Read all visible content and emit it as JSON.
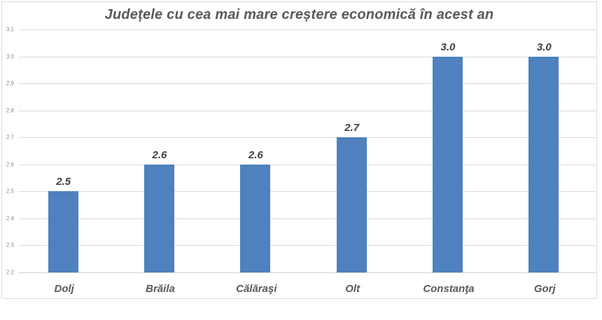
{
  "chart": {
    "title": "Județele cu cea mai mare creștere economică în acest an",
    "colors": {
      "bar": "#4e81bd",
      "gridline": "#d9d9d9",
      "panel_border": "#d9dce1",
      "title_text": "#595959",
      "value_label_text": "#404040",
      "category_text": "#595959",
      "tick_text": "#8c8c8c",
      "background": "#ffffff"
    }
  },
  "chart_data": {
    "type": "bar",
    "title": "Județele cu cea mai mare creștere economică în acest an",
    "categories": [
      "Dolj",
      "Brăila",
      "Călăraşi",
      "Olt",
      "Constanţa",
      "Gorj"
    ],
    "values": [
      2.5,
      2.6,
      2.6,
      2.7,
      3.0,
      3.0
    ],
    "value_labels": [
      "2.5",
      "2.6",
      "2.6",
      "2.7",
      "3.0",
      "3.0"
    ],
    "xlabel": "",
    "ylabel": "",
    "ylim": [
      2.2,
      3.1
    ],
    "ytick_step": 0.1,
    "yticks": [
      "3.1",
      "3.0",
      "2.9",
      "2.8",
      "2.7",
      "2.6",
      "2.5",
      "2.4",
      "2.3",
      "2.2"
    ],
    "grid": true,
    "legend": false,
    "bar_color": "#4e81bd"
  }
}
